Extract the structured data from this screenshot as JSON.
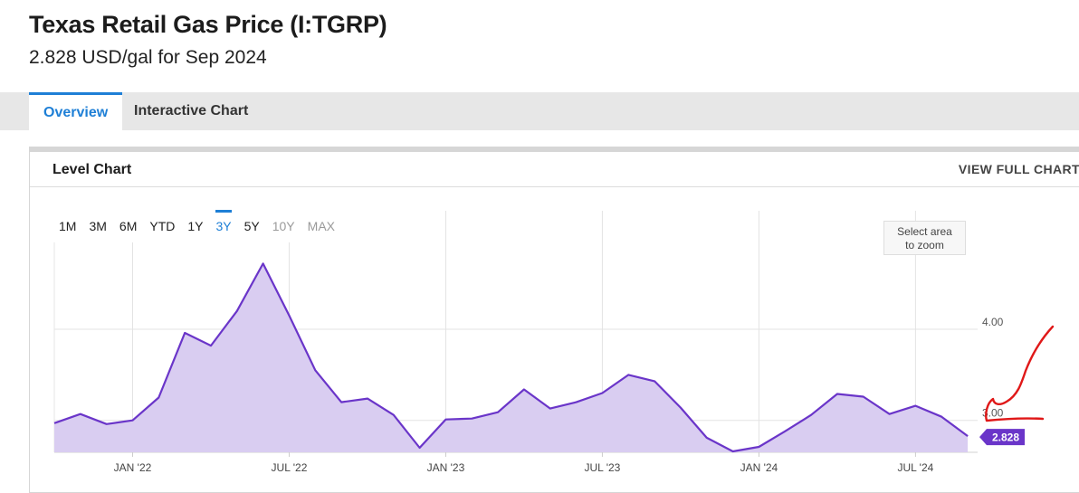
{
  "header": {
    "title": "Texas Retail Gas Price (I:TGRP)",
    "subtitle": "2.828 USD/gal for Sep 2024"
  },
  "tabs": [
    {
      "label": "Overview",
      "active": true
    },
    {
      "label": "Interactive Chart",
      "active": false
    }
  ],
  "panel": {
    "title": "Level Chart",
    "view_full_label": "VIEW FULL CHART"
  },
  "ranges": [
    {
      "label": "1M",
      "state": "normal"
    },
    {
      "label": "3M",
      "state": "normal"
    },
    {
      "label": "6M",
      "state": "normal"
    },
    {
      "label": "YTD",
      "state": "normal"
    },
    {
      "label": "1Y",
      "state": "normal"
    },
    {
      "label": "3Y",
      "state": "active"
    },
    {
      "label": "5Y",
      "state": "normal"
    },
    {
      "label": "10Y",
      "state": "disabled"
    },
    {
      "label": "MAX",
      "state": "disabled"
    }
  ],
  "zoom_hint": {
    "line1": "Select area",
    "line2": "to zoom"
  },
  "colors": {
    "accent": "#1e7fd6",
    "series_line": "#6a35c9",
    "series_fill": "#d9cdf1",
    "annotation": "#e01818"
  },
  "chart_data": {
    "type": "area",
    "title": "",
    "xlabel": "",
    "ylabel": "",
    "x_ticks": [
      {
        "label": "JAN '22",
        "date": "2022-01"
      },
      {
        "label": "JUL '22",
        "date": "2022-07"
      },
      {
        "label": "JAN '23",
        "date": "2023-01"
      },
      {
        "label": "JUL '23",
        "date": "2023-07"
      },
      {
        "label": "JAN '24",
        "date": "2024-01"
      },
      {
        "label": "JUL '24",
        "date": "2024-07"
      }
    ],
    "y_ticks": [
      {
        "label": "4.00",
        "value": 4.0
      },
      {
        "label": "3.00",
        "value": 3.0
      }
    ],
    "ylim": [
      2.65,
      5.3
    ],
    "grid": true,
    "last_value_label": "2.828",
    "series": [
      {
        "x": [
          "2021-10",
          "2021-11",
          "2021-12",
          "2022-01",
          "2022-02",
          "2022-03",
          "2022-04",
          "2022-05",
          "2022-06",
          "2022-07",
          "2022-08",
          "2022-09",
          "2022-10",
          "2022-11",
          "2022-12",
          "2023-01",
          "2023-02",
          "2023-03",
          "2023-04",
          "2023-05",
          "2023-06",
          "2023-07",
          "2023-08",
          "2023-09",
          "2023-10",
          "2023-11",
          "2023-12",
          "2024-01",
          "2024-02",
          "2024-03",
          "2024-04",
          "2024-05",
          "2024-06",
          "2024-07",
          "2024-08",
          "2024-09"
        ],
        "values": [
          2.97,
          3.07,
          2.96,
          3.0,
          3.25,
          3.96,
          3.82,
          4.2,
          4.72,
          4.15,
          3.55,
          3.2,
          3.24,
          3.06,
          2.7,
          3.01,
          3.02,
          3.09,
          3.34,
          3.13,
          3.2,
          3.3,
          3.5,
          3.43,
          3.14,
          2.81,
          2.66,
          2.71,
          2.88,
          3.06,
          3.29,
          3.26,
          3.07,
          3.16,
          3.04,
          2.828
        ]
      }
    ]
  }
}
